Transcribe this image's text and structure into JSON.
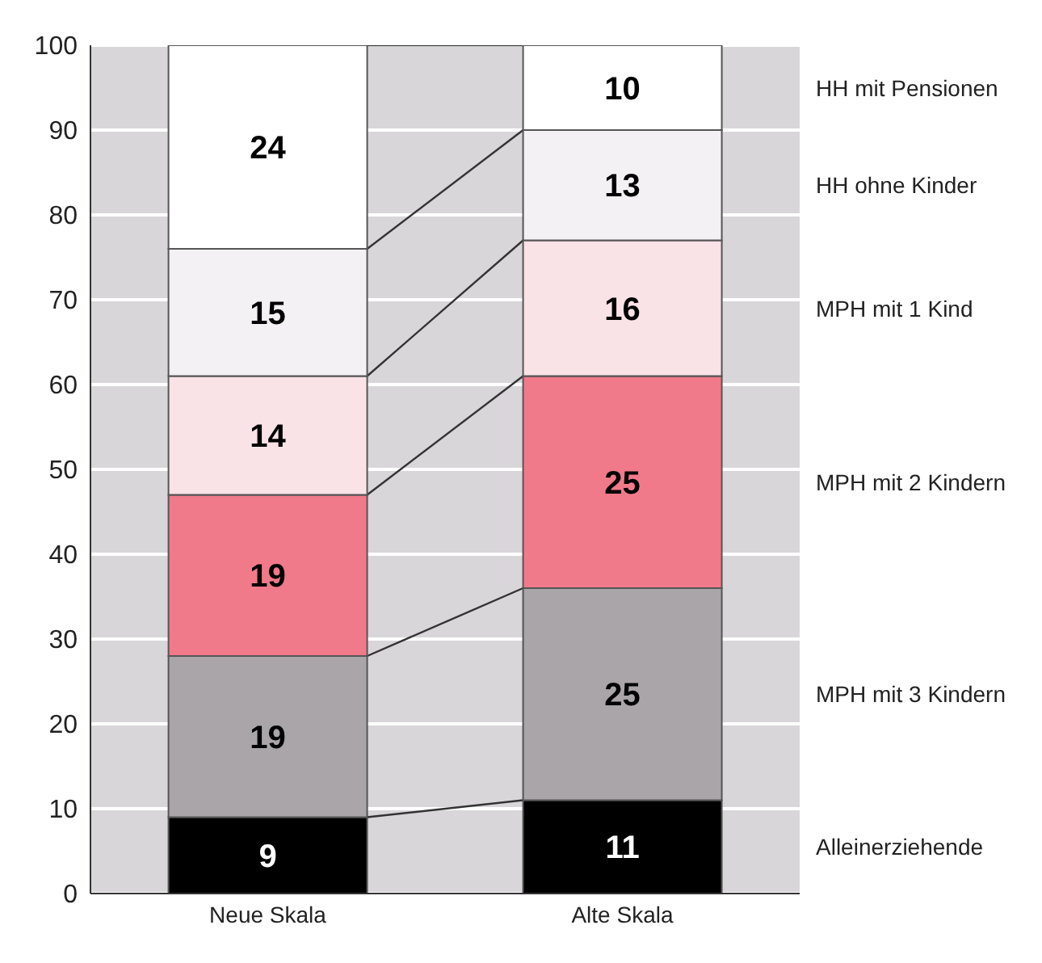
{
  "chart_data": {
    "type": "bar",
    "stacked": true,
    "categories": [
      "Neue Skala",
      "Alte Skala"
    ],
    "series": [
      {
        "name": "Alleinerziehende",
        "color": "#000000",
        "values": [
          9,
          11
        ]
      },
      {
        "name": "MPH mit 3 Kindern",
        "color": "#a9a5a9",
        "values": [
          19,
          25
        ]
      },
      {
        "name": "MPH mit 2 Kindern",
        "color": "#f07a8a",
        "values": [
          19,
          25
        ]
      },
      {
        "name": "MPH mit 1 Kind",
        "color": "#f9e3e7",
        "values": [
          14,
          16
        ]
      },
      {
        "name": "HH ohne Kinder",
        "color": "#f4f1f4",
        "values": [
          15,
          13
        ]
      },
      {
        "name": "HH mit Pensionen",
        "color": "#ffffff",
        "values": [
          24,
          10
        ]
      }
    ],
    "ylim": [
      0,
      100
    ],
    "yticks": [
      0,
      10,
      20,
      30,
      40,
      50,
      60,
      70,
      80,
      90,
      100
    ],
    "grid": "y",
    "data_labels": true,
    "legend": "right"
  }
}
